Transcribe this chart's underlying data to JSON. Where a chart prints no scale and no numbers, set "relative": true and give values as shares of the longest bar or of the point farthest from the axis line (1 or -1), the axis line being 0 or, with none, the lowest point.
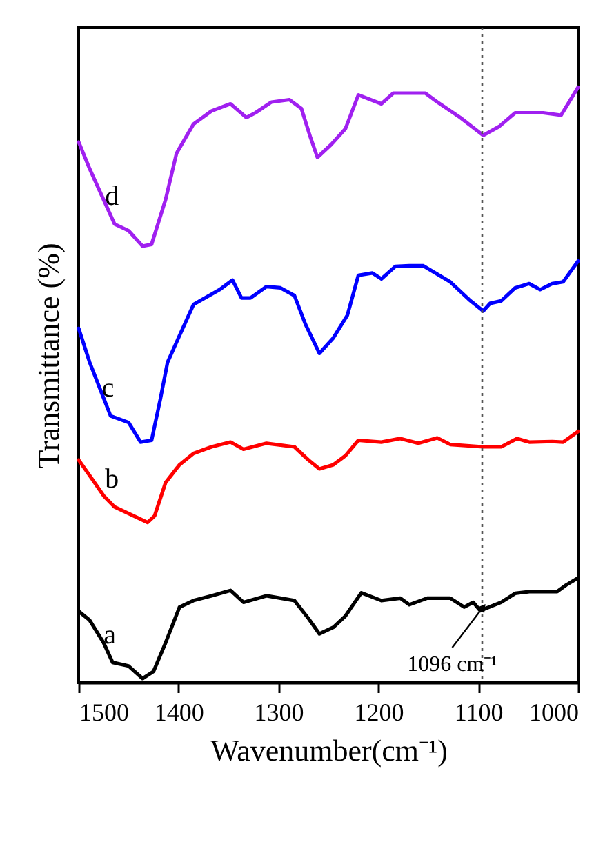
{
  "chart_data": {
    "type": "line",
    "relative": true,
    "xlabel": "Wavenumber(cm⁻¹)",
    "ylabel": "Transmittance (%)",
    "xlim": [
      1500,
      1000
    ],
    "xticks": [
      1500,
      1400,
      1300,
      1200,
      1100,
      1000
    ],
    "grid": false,
    "marker": "none",
    "line_style": "solid",
    "series": [
      {
        "name": "a",
        "color": "#000000",
        "x": [
          1500,
          1489,
          1475,
          1466,
          1450,
          1436,
          1425,
          1413,
          1399,
          1385,
          1367,
          1348,
          1335,
          1312,
          1284,
          1270,
          1259,
          1245,
          1233,
          1217,
          1197,
          1178,
          1169,
          1151,
          1128,
          1114,
          1105,
          1098,
          1077,
          1063,
          1049,
          1021,
          1012,
          1000
        ],
        "values": [
          0.12,
          0.105,
          0.067,
          0.034,
          0.028,
          0.007,
          0.019,
          0.067,
          0.127,
          0.138,
          0.146,
          0.155,
          0.135,
          0.146,
          0.138,
          0.108,
          0.082,
          0.093,
          0.112,
          0.151,
          0.138,
          0.142,
          0.131,
          0.142,
          0.142,
          0.127,
          0.135,
          0.121,
          0.135,
          0.15,
          0.153,
          0.153,
          0.164,
          0.176
        ]
      },
      {
        "name": "b",
        "color": "#ff0000",
        "x": [
          1500,
          1489,
          1475,
          1464,
          1450,
          1431,
          1424,
          1413,
          1399,
          1385,
          1367,
          1348,
          1335,
          1312,
          1284,
          1270,
          1259,
          1245,
          1233,
          1220,
          1197,
          1178,
          1160,
          1141,
          1128,
          1095,
          1077,
          1061,
          1049,
          1026,
          1015,
          1000
        ],
        "values": [
          0.374,
          0.348,
          0.314,
          0.295,
          0.284,
          0.269,
          0.28,
          0.336,
          0.366,
          0.385,
          0.396,
          0.404,
          0.392,
          0.402,
          0.396,
          0.374,
          0.359,
          0.366,
          0.381,
          0.407,
          0.404,
          0.41,
          0.402,
          0.411,
          0.4,
          0.396,
          0.396,
          0.41,
          0.404,
          0.405,
          0.404,
          0.422
        ]
      },
      {
        "name": "c",
        "color": "#0000ff",
        "x": [
          1500,
          1489,
          1475,
          1468,
          1450,
          1438,
          1427,
          1418,
          1411,
          1399,
          1385,
          1358,
          1346,
          1337,
          1328,
          1312,
          1298,
          1284,
          1273,
          1259,
          1245,
          1231,
          1220,
          1206,
          1197,
          1183,
          1169,
          1155,
          1146,
          1128,
          1109,
          1095,
          1088,
          1077,
          1063,
          1049,
          1038,
          1026,
          1015,
          1000
        ],
        "values": [
          0.595,
          0.538,
          0.478,
          0.448,
          0.437,
          0.404,
          0.407,
          0.478,
          0.538,
          0.583,
          0.635,
          0.661,
          0.676,
          0.646,
          0.646,
          0.665,
          0.663,
          0.65,
          0.602,
          0.553,
          0.579,
          0.617,
          0.684,
          0.688,
          0.678,
          0.699,
          0.7,
          0.7,
          0.691,
          0.673,
          0.643,
          0.624,
          0.637,
          0.641,
          0.663,
          0.67,
          0.66,
          0.67,
          0.673,
          0.708
        ]
      },
      {
        "name": "d",
        "color": "#a020f0",
        "x": [
          1500,
          1489,
          1475,
          1464,
          1450,
          1436,
          1427,
          1413,
          1402,
          1385,
          1367,
          1348,
          1332,
          1323,
          1307,
          1289,
          1277,
          1268,
          1261,
          1247,
          1233,
          1220,
          1197,
          1185,
          1171,
          1153,
          1141,
          1118,
          1095,
          1079,
          1063,
          1035,
          1017,
          1000
        ],
        "values": [
          0.908,
          0.863,
          0.811,
          0.77,
          0.759,
          0.733,
          0.736,
          0.811,
          0.889,
          0.938,
          0.96,
          0.972,
          0.949,
          0.957,
          0.975,
          0.979,
          0.964,
          0.916,
          0.882,
          0.904,
          0.93,
          0.987,
          0.972,
          0.99,
          0.99,
          0.99,
          0.975,
          0.949,
          0.919,
          0.934,
          0.957,
          0.957,
          0.953,
          1.0
        ]
      }
    ],
    "ref_lines": [
      {
        "axis": "x",
        "value": 1096,
        "color": "#555555",
        "line_style": "dotted"
      }
    ],
    "annotations": [
      {
        "text": "1096 cm⁻¹",
        "x": 1096,
        "y": 0.125
      }
    ]
  }
}
